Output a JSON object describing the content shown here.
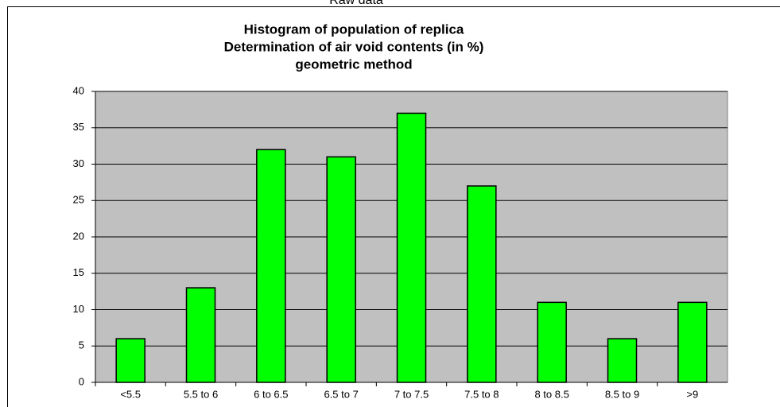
{
  "header": "Raw data",
  "chart_data": {
    "type": "bar",
    "title": [
      "Histogram of population of replica",
      "Determination of air void contents (in %)",
      "geometric method"
    ],
    "categories": [
      "<5.5",
      "5.5 to 6",
      "6 to 6.5",
      "6.5 to 7",
      "7 to 7.5",
      "7.5 to 8",
      "8 to 8.5",
      "8.5 to 9",
      ">9"
    ],
    "values": [
      6,
      13,
      32,
      31,
      37,
      27,
      11,
      6,
      11
    ],
    "color": "#00ff00",
    "ylim": [
      0,
      40
    ],
    "yticks": [
      0,
      5,
      10,
      15,
      20,
      25,
      30,
      35,
      40
    ],
    "grid": true
  }
}
